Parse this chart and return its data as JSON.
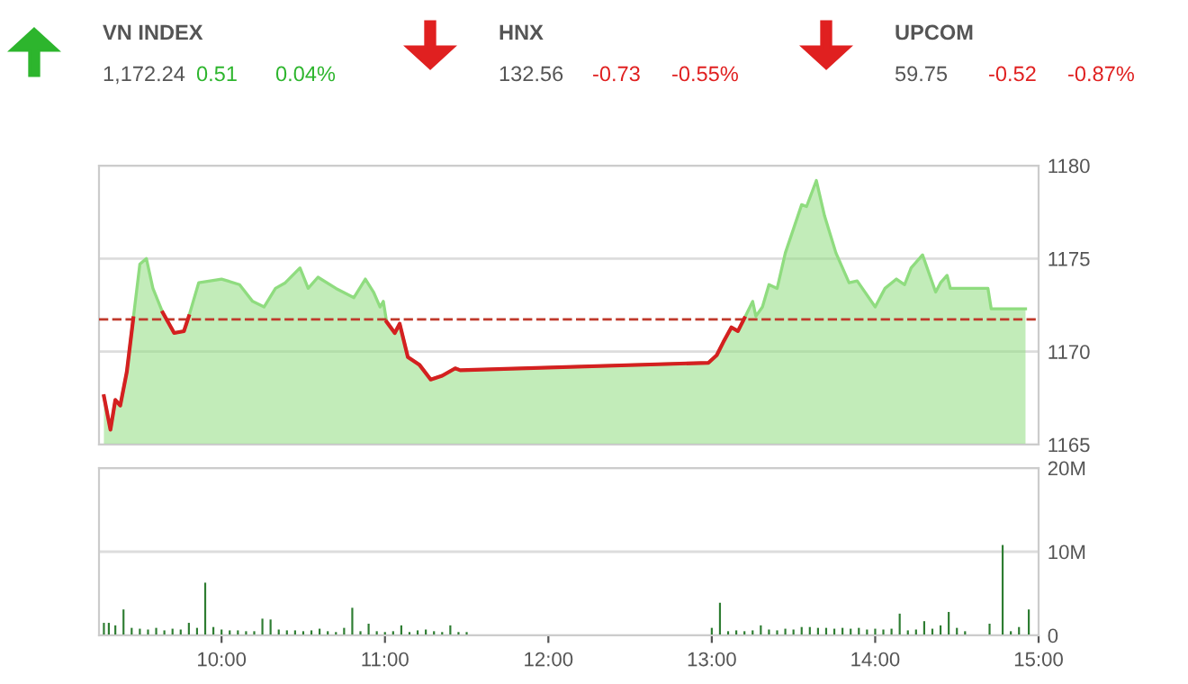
{
  "chart_data": [
    {
      "type": "other",
      "categories": [
        "VN INDEX",
        "HNX",
        "UPCOM"
      ],
      "value_labels": [
        "1,172.24",
        "132.56",
        "59.75"
      ],
      "series": [
        {
          "values": [
            0.51,
            -0.73,
            -0.52
          ],
          "value_labels": [
            "0.51",
            "-0.73",
            "-0.52"
          ]
        },
        {
          "values": [
            0.04,
            -0.55,
            -0.87
          ],
          "value_labels": [
            "0.04%",
            "-0.55%",
            "-0.87%"
          ]
        }
      ],
      "colors": [
        "#2db52d",
        "#e02020",
        "#e02020"
      ]
    },
    {
      "type": "area",
      "x": [
        9.28,
        9.32,
        9.35,
        9.38,
        9.42,
        9.46,
        9.5,
        9.54,
        9.58,
        9.64,
        9.71,
        9.77,
        9.8,
        9.86,
        10.0,
        10.11,
        10.19,
        10.26,
        10.33,
        10.39,
        10.48,
        10.53,
        10.59,
        10.7,
        10.81,
        10.88,
        10.93,
        10.97,
        10.99,
        11.01,
        11.06,
        11.09,
        11.14,
        11.21,
        11.28,
        11.35,
        11.43,
        11.46,
        12.98,
        13.03,
        13.07,
        13.12,
        13.16,
        13.2,
        13.25,
        13.27,
        13.31,
        13.35,
        13.4,
        13.45,
        13.55,
        13.58,
        13.64,
        13.69,
        13.76,
        13.84,
        13.89,
        14.0,
        14.06,
        14.13,
        14.18,
        14.22,
        14.29,
        14.37,
        14.4,
        14.44,
        14.46,
        14.69,
        14.71,
        14.92
      ],
      "series": [
        {
          "type": "area",
          "color": "#8fdc7f",
          "values": [
            1167.6,
            1165.8,
            1167.4,
            1167.1,
            1168.9,
            1171.8,
            1174.7,
            1175.0,
            1173.4,
            1172.1,
            1171.0,
            1171.1,
            1171.9,
            1173.7,
            1173.9,
            1173.6,
            1172.7,
            1172.4,
            1173.4,
            1173.7,
            1174.5,
            1173.4,
            1174.0,
            1173.4,
            1172.9,
            1173.9,
            1173.2,
            1172.4,
            1172.7,
            1171.6,
            1171.0,
            1171.5,
            1169.7,
            1169.3,
            1168.5,
            1168.7,
            1169.1,
            1169.0,
            1169.4,
            1169.8,
            1170.5,
            1171.3,
            1171.1,
            1171.8,
            1172.7,
            1171.9,
            1172.4,
            1173.6,
            1173.4,
            1175.3,
            1177.9,
            1177.8,
            1179.2,
            1177.3,
            1175.3,
            1173.7,
            1173.8,
            1172.4,
            1173.4,
            1173.9,
            1173.6,
            1174.5,
            1175.2,
            1173.2,
            1173.7,
            1174.1,
            1173.4,
            1173.4,
            1172.3,
            1172.3
          ]
        },
        {
          "type": "line",
          "color": "#d42020",
          "values": [
            1167.6,
            1165.8,
            1167.4,
            1167.1,
            1168.9,
            1171.8,
            null,
            null,
            null,
            1172.1,
            1171.0,
            1171.1,
            1171.9,
            null,
            null,
            null,
            null,
            null,
            null,
            null,
            null,
            null,
            null,
            null,
            null,
            null,
            null,
            null,
            null,
            1171.6,
            1171.0,
            1171.5,
            1169.7,
            1169.3,
            1168.5,
            1168.7,
            1169.1,
            1169.0,
            1169.4,
            1169.8,
            1170.5,
            1171.3,
            1171.1,
            1171.8,
            null,
            null,
            null,
            null,
            null,
            null,
            null,
            null,
            null,
            null,
            null,
            null,
            null,
            null,
            null,
            null,
            null,
            null,
            null,
            null,
            null,
            null,
            null,
            null,
            null,
            null
          ]
        }
      ],
      "xlim": [
        9.25,
        15
      ],
      "ylim": [
        1165,
        1180
      ],
      "yticks": [
        1165,
        1170,
        1175,
        1180
      ],
      "grid": "y",
      "tick_labels": "y",
      "ref_lines": [
        {
          "axis": "y",
          "value": 1171.73,
          "color": "#c0392b",
          "line_style": "dashed"
        }
      ]
    },
    {
      "type": "bar",
      "x": [
        9.28,
        9.31,
        9.35,
        9.4,
        9.45,
        9.5,
        9.55,
        9.6,
        9.65,
        9.7,
        9.75,
        9.8,
        9.85,
        9.9,
        9.95,
        10.0,
        10.05,
        10.1,
        10.15,
        10.2,
        10.25,
        10.3,
        10.35,
        10.4,
        10.45,
        10.5,
        10.55,
        10.6,
        10.65,
        10.7,
        10.75,
        10.8,
        10.85,
        10.9,
        10.95,
        11.0,
        11.05,
        11.1,
        11.15,
        11.2,
        11.25,
        11.3,
        11.35,
        11.4,
        11.45,
        11.5,
        13.0,
        13.05,
        13.1,
        13.15,
        13.2,
        13.25,
        13.3,
        13.35,
        13.4,
        13.45,
        13.5,
        13.55,
        13.6,
        13.65,
        13.7,
        13.75,
        13.8,
        13.85,
        13.9,
        13.95,
        14.0,
        14.05,
        14.1,
        14.15,
        14.2,
        14.25,
        14.3,
        14.35,
        14.4,
        14.45,
        14.5,
        14.55,
        14.7,
        14.78,
        14.83,
        14.88,
        14.94
      ],
      "series": [
        {
          "color": "#2e7d32",
          "values": [
            1.5,
            1.5,
            1.2,
            3.1,
            0.9,
            0.8,
            0.7,
            0.9,
            0.6,
            0.8,
            0.7,
            1.5,
            0.9,
            6.3,
            1.0,
            0.7,
            0.6,
            0.6,
            0.5,
            0.5,
            2.0,
            1.9,
            0.7,
            0.6,
            0.6,
            0.5,
            0.6,
            0.8,
            0.5,
            0.4,
            0.9,
            3.3,
            0.5,
            1.4,
            0.5,
            0.4,
            0.5,
            1.2,
            0.4,
            0.6,
            0.7,
            0.5,
            0.4,
            1.2,
            0.4,
            0.4,
            0.9,
            3.9,
            0.5,
            0.6,
            0.5,
            0.6,
            1.2,
            0.7,
            0.6,
            0.8,
            0.7,
            1.0,
            1.0,
            0.9,
            0.9,
            0.8,
            0.9,
            0.8,
            0.9,
            0.7,
            0.8,
            0.7,
            0.8,
            2.6,
            0.6,
            0.7,
            1.7,
            0.8,
            1.2,
            2.8,
            0.9,
            0.5,
            1.4,
            10.8,
            0.5,
            1.0,
            3.1
          ]
        }
      ],
      "xlim": [
        9.25,
        15
      ],
      "xticks": [
        {
          "value": 10,
          "label": "10:00"
        },
        {
          "value": 11,
          "label": "11:00"
        },
        {
          "value": 12,
          "label": "12:00"
        },
        {
          "value": 13,
          "label": "13:00"
        },
        {
          "value": 14,
          "label": "14:00"
        },
        {
          "value": 15,
          "label": "15:00"
        }
      ],
      "ylim": [
        0,
        20
      ],
      "yticks": [
        0,
        {
          "value": 10,
          "label": "10M"
        },
        {
          "value": 20,
          "label": "20M"
        }
      ],
      "grid": "y"
    }
  ]
}
